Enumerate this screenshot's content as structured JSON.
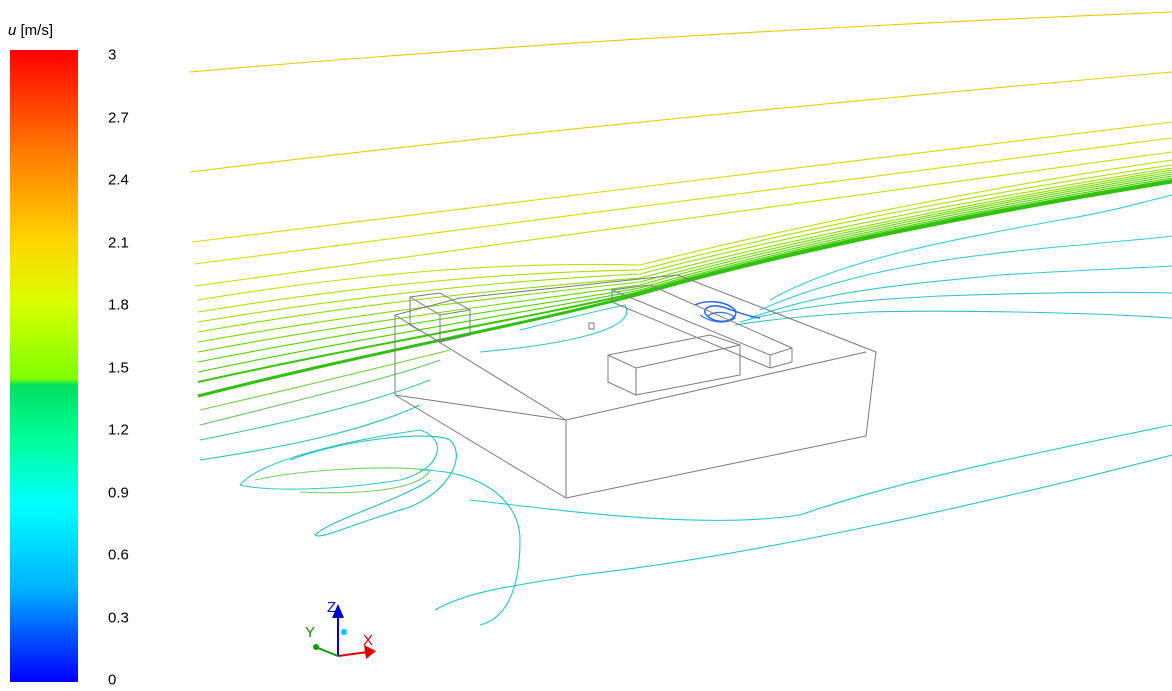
{
  "legend": {
    "symbol": "u",
    "unit": "[m/s]",
    "ticks": [
      "3",
      "2.7",
      "2.4",
      "2.1",
      "1.8",
      "1.5",
      "1.2",
      "0.9",
      "0.6",
      "0.3",
      "0"
    ]
  },
  "axes_triad": {
    "x_label": "X",
    "y_label": "Y",
    "z_label": "Z",
    "x_color": "#e00000",
    "y_color": "#00a000",
    "z_color": "#0000d0"
  },
  "colors": {
    "streamline_top": "#ffd000",
    "streamline_mid": "#7fdc00",
    "streamline_low": "#00e0c8",
    "streamline_wake": "#2060ff",
    "geometry": "#7a7a7a"
  }
}
